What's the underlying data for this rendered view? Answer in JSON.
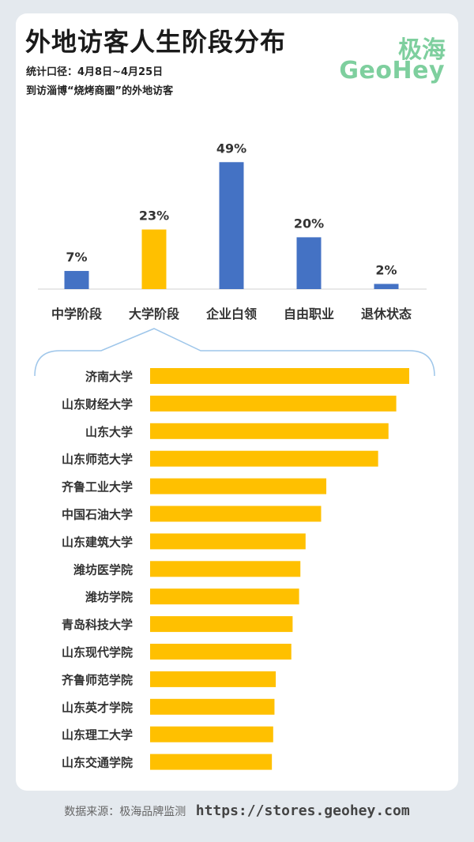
{
  "header": {
    "title": "外地访客人生阶段分布",
    "subtitle_line1": "统计口径：4月8日~4月25日",
    "subtitle_line2": "到访淄博“烧烤商圈”的外地访客",
    "logo_cn": "极海",
    "logo_en": "GeoHey"
  },
  "footer": {
    "source_label": "数据来源：极海品牌监测",
    "url": "https://stores.geohey.com"
  },
  "colors": {
    "blue": "#4472c4",
    "gold": "#ffc000",
    "logo": "#7ecf9e",
    "callout": "#9ec6ea"
  },
  "chart_data": [
    {
      "type": "bar",
      "categories": [
        "中学阶段",
        "大学阶段",
        "企业白领",
        "自由职业",
        "退休状态"
      ],
      "values": [
        7,
        23,
        49,
        20,
        2
      ],
      "data_labels": [
        "7%",
        "23%",
        "49%",
        "20%",
        "2%"
      ],
      "highlight_index": 1,
      "ylim": [
        0,
        50
      ],
      "grid": false,
      "legend": "none"
    },
    {
      "type": "bar",
      "orientation": "horizontal",
      "categories": [
        "济南大学",
        "山东财经大学",
        "山东大学",
        "山东师范大学",
        "齐鲁工业大学",
        "中国石油大学",
        "山东建筑大学",
        "潍坊医学院",
        "潍坊学院",
        "青岛科技大学",
        "山东现代学院",
        "齐鲁师范学院",
        "山东英才学院",
        "山东理工大学",
        "山东交通学院"
      ],
      "values": [
        100,
        95,
        92,
        88,
        68,
        66,
        60,
        58,
        57.5,
        55,
        54.5,
        48.5,
        48,
        47.5,
        47
      ],
      "xlim": [
        0,
        100
      ],
      "grid": false,
      "legend": "none"
    }
  ]
}
